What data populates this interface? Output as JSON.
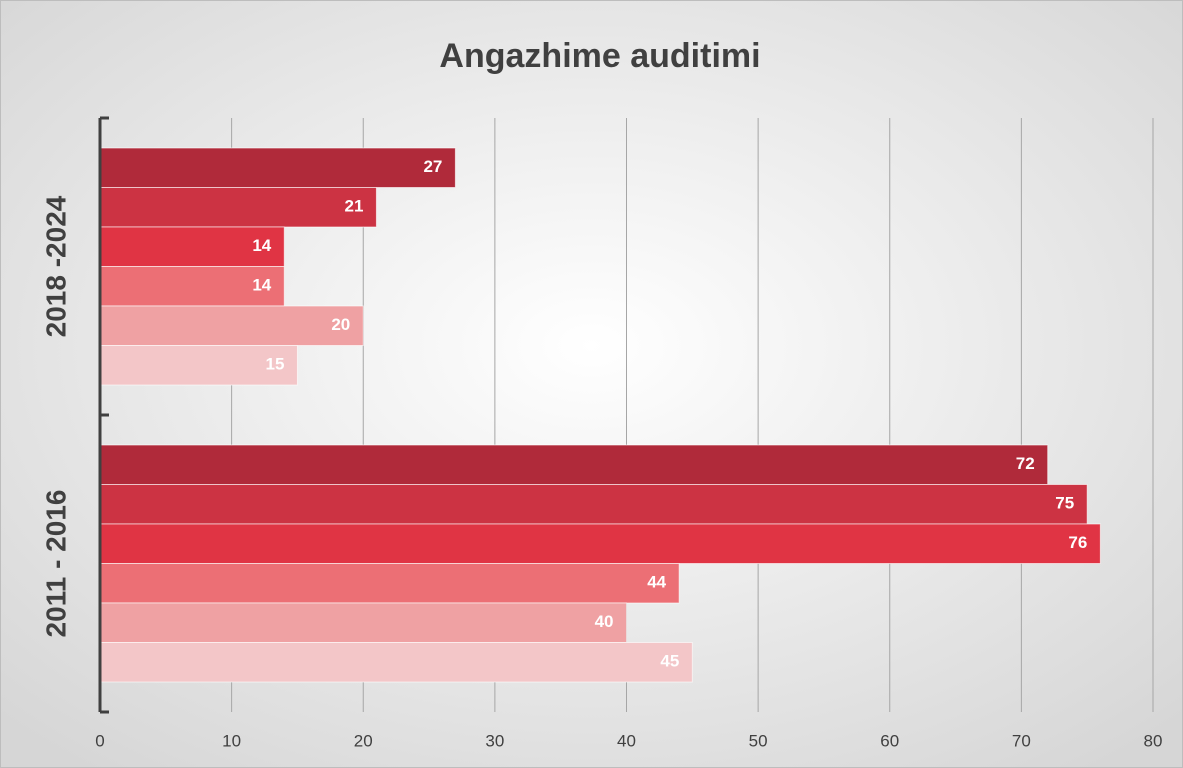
{
  "chart_data": {
    "type": "bar",
    "orientation": "horizontal",
    "title": "Angazhime auditimi",
    "categories": [
      "2011 - 2016",
      "2018 -2024"
    ],
    "series": [
      {
        "color": "#b02a3a",
        "values": [
          72,
          27
        ]
      },
      {
        "color": "#cc3343",
        "values": [
          75,
          21
        ]
      },
      {
        "color": "#e03444",
        "values": [
          76,
          14
        ]
      },
      {
        "color": "#ec6f75",
        "values": [
          44,
          14
        ]
      },
      {
        "color": "#efa1a3",
        "values": [
          40,
          20
        ]
      },
      {
        "color": "#f3c6c8",
        "values": [
          45,
          15
        ]
      }
    ],
    "xlim": [
      0,
      80
    ],
    "xticks": [
      0,
      10,
      20,
      30,
      40,
      50,
      60,
      70,
      80
    ],
    "grid": true
  }
}
